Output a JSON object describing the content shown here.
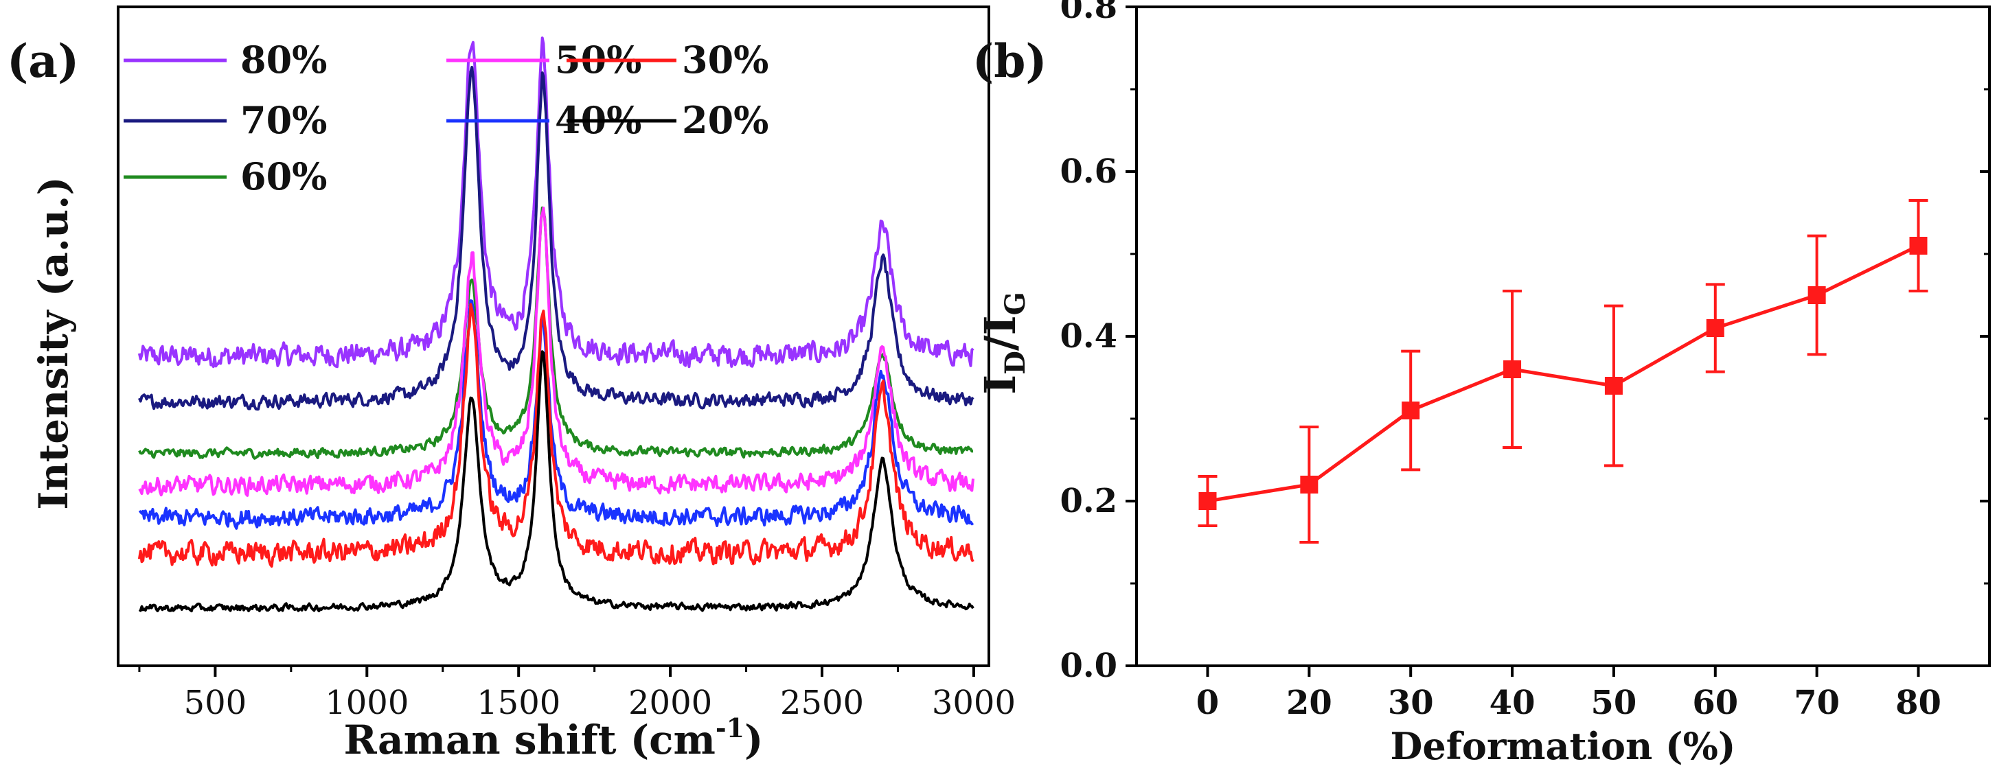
{
  "chart_data": [
    {
      "type": "line",
      "panel_label": "(a)",
      "title": "",
      "xlabel": "Raman shift (cm",
      "xlabel_sup": "-1",
      "xlabel_close": ")",
      "ylabel": "Intensity (a.u.)",
      "xlim": [
        180,
        3050
      ],
      "xticks": [
        500,
        1000,
        1500,
        2000,
        2500,
        3000
      ],
      "xtick_labels": [
        "500",
        "1000",
        "1500",
        "2000",
        "2500",
        "3000"
      ],
      "yticks_visible": false,
      "x_start": 250,
      "x_end": 3000,
      "peaks_cm": {
        "D": 1345,
        "G": 1580,
        "2D": 2700
      },
      "series": [
        {
          "name": "80%",
          "color": "#9933ff",
          "baseline": 0.83,
          "D": 0.98,
          "G": 0.95,
          "2D": 0.4,
          "noise": 0.05
        },
        {
          "name": "70%",
          "color": "#1a1a80",
          "baseline": 0.69,
          "D": 1.02,
          "G": 1.0,
          "2D": 0.44,
          "noise": 0.03
        },
        {
          "name": "60%",
          "color": "#1f8a1f",
          "baseline": 0.53,
          "D": 0.53,
          "G": 0.75,
          "2D": 0.31,
          "noise": 0.02
        },
        {
          "name": "50%",
          "color": "#ff33ff",
          "baseline": 0.43,
          "D": 0.7,
          "G": 0.85,
          "2D": 0.43,
          "noise": 0.04
        },
        {
          "name": "40%",
          "color": "#1a33ff",
          "baseline": 0.33,
          "D": 0.65,
          "G": 0.6,
          "2D": 0.45,
          "noise": 0.04
        },
        {
          "name": "30%",
          "color": "#ff1a1a",
          "baseline": 0.22,
          "D": 0.75,
          "G": 0.75,
          "2D": 0.5,
          "noise": 0.05
        },
        {
          "name": "20%",
          "color": "#000000",
          "baseline": 0.05,
          "D": 0.65,
          "G": 0.78,
          "2D": 0.46,
          "noise": 0.015
        }
      ],
      "legend": {
        "placement": "top-left",
        "rows": [
          [
            "80%",
            "50%",
            "30%"
          ],
          [
            "70%",
            "40%",
            "20%"
          ],
          [
            "60%"
          ]
        ]
      }
    },
    {
      "type": "line",
      "panel_label": "(b)",
      "title": "",
      "xlabel": "Deformation (%)",
      "ylabel": "I",
      "ylabel_sub1": "D",
      "ylabel_slash": "/I",
      "ylabel_sub2": "G",
      "xlim": [
        -6,
        86
      ],
      "ylim": [
        0.0,
        0.8
      ],
      "xticks": [
        0,
        20,
        30,
        40,
        50,
        60,
        70,
        80
      ],
      "xtick_labels": [
        "0",
        "20",
        "30",
        "40",
        "50",
        "60",
        "70",
        "80"
      ],
      "yticks": [
        0.0,
        0.2,
        0.4,
        0.6,
        0.8
      ],
      "ytick_labels": [
        "0.0",
        "0.2",
        "0.4",
        "0.6",
        "0.8"
      ],
      "color": "#ff1a1a",
      "categorical_x": true,
      "x": [
        0,
        20,
        30,
        40,
        50,
        60,
        70,
        80
      ],
      "y": [
        0.2,
        0.22,
        0.31,
        0.36,
        0.34,
        0.41,
        0.45,
        0.51
      ],
      "yerr": [
        0.03,
        0.07,
        0.072,
        0.095,
        0.097,
        0.053,
        0.072,
        0.055
      ]
    }
  ]
}
